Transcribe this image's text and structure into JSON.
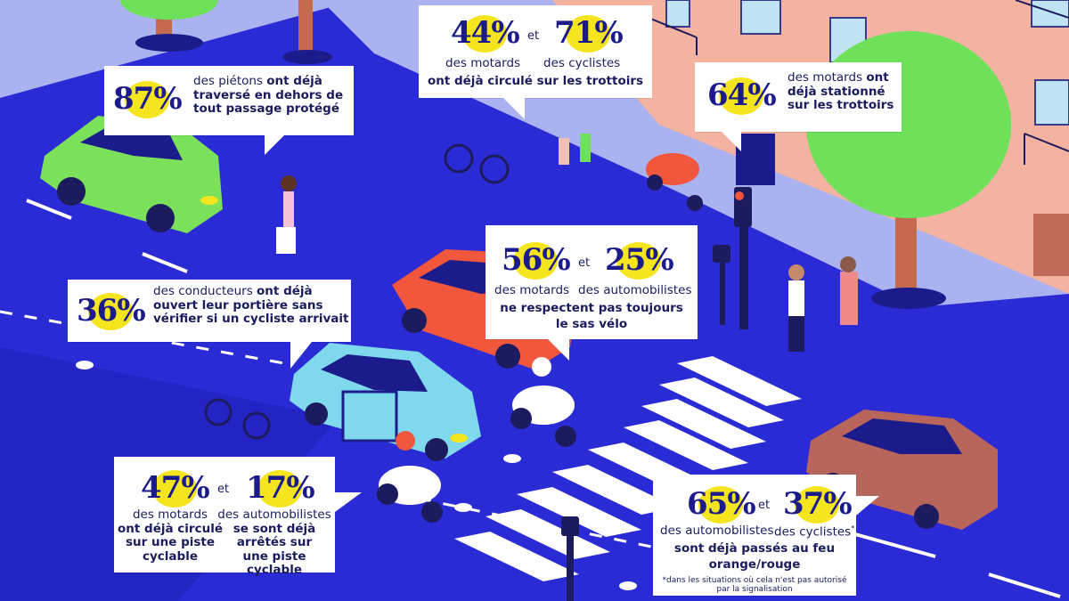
{
  "bubbles": {
    "pedestrians": {
      "pct": "87%",
      "line1_normal": "des piétons",
      "line1_bold": "ont déjà",
      "line2": "traversé en dehors de",
      "line3": "tout passage protégé"
    },
    "sidewalk_ride": {
      "pct_a": "44%",
      "and": "et",
      "pct_b": "71%",
      "label_a": "des motards",
      "label_b": "des cyclistes",
      "line_bold": "ont déjà circulé sur les trottoirs"
    },
    "sidewalk_park": {
      "pct": "64%",
      "line1_normal": "des motards",
      "line1_bold": "ont",
      "line2": "déjà stationné",
      "line3": "sur les trottoirs"
    },
    "bike_box": {
      "pct_a": "56%",
      "and": "et",
      "pct_b": "25%",
      "label_a": "des motards",
      "label_b": "des automobilistes",
      "line1": "ne respectent pas toujours",
      "line2": "le sas vélo"
    },
    "door": {
      "pct": "36%",
      "line1_normal": "des conducteurs",
      "line1_bold": "ont déjà",
      "line2": "ouvert leur portière sans",
      "line3": "vérifier si un cycliste arrivait"
    },
    "bike_lane": {
      "pct_a": "47%",
      "and": "et",
      "pct_b": "17%",
      "label_a": "des motards",
      "label_b": "des automobilistes",
      "a_line2": "ont déjà circulé",
      "a_line3": "sur une piste",
      "a_line4": "cyclable",
      "b_line2": "se sont déjà",
      "b_line3": "arrêtés sur",
      "b_line4": "une piste cyclable"
    },
    "red_light": {
      "pct_a": "65%",
      "and": "et",
      "pct_b": "37%",
      "label_a": "des automobilistes",
      "label_b": "des cyclistes",
      "asterisk": "*",
      "line1": "sont déjà passés au feu",
      "line2": "orange/rouge",
      "note1": "*dans les situations où cela n'est pas autorisé",
      "note2": "par la signalisation"
    }
  },
  "colors": {
    "road": "#2b2bd6",
    "sidewalk": "#aab2f0",
    "building": "#f3b3a0",
    "highlight": "#f5e51e",
    "text": "#1b1b5e"
  }
}
